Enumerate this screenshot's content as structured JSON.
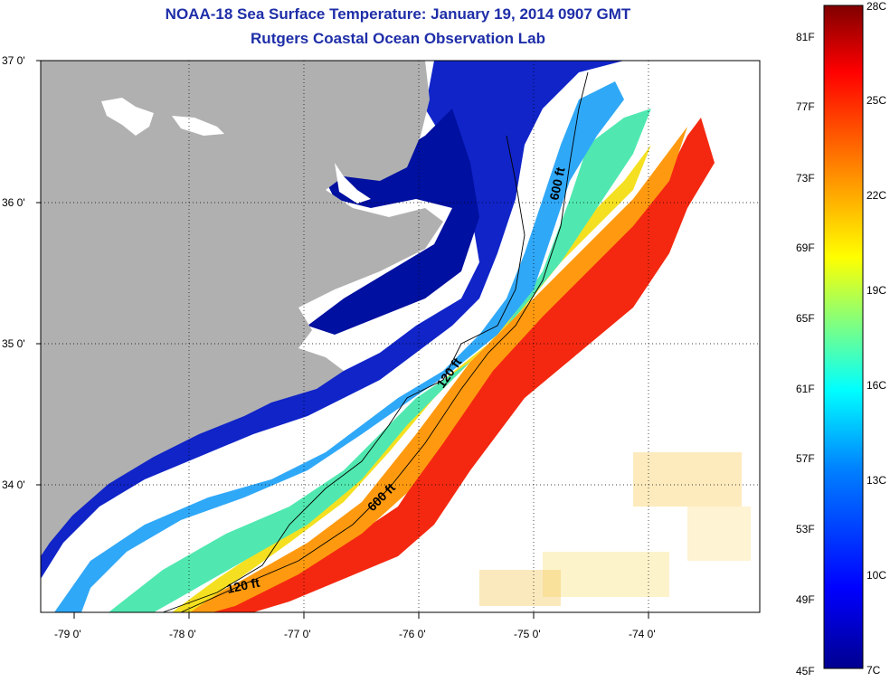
{
  "header": {
    "title": "NOAA-18 Sea Surface Temperature:  January 19, 2014 0907 GMT",
    "subtitle": "Rutgers Coastal Ocean Observation Lab"
  },
  "axes": {
    "lat_labels": [
      "37 0'",
      "36 0'",
      "35 0'",
      "34 0'"
    ],
    "lon_labels": [
      "-79 0'",
      "-78 0'",
      "-77 0'",
      "-76 0'",
      "-75 0'",
      "-74 0'"
    ]
  },
  "contours": {
    "labels": [
      "600 ft",
      "120 ft",
      "600 ft",
      "120 ft"
    ]
  },
  "colorbar": {
    "fahrenheit_labels": [
      "81F",
      "77F",
      "73F",
      "69F",
      "65F",
      "61F",
      "57F",
      "53F",
      "49F",
      "45F"
    ],
    "celsius_labels": [
      "28C",
      "25C",
      "22C",
      "19C",
      "16C",
      "13C",
      "10C",
      "7C"
    ],
    "colors": [
      "#00008f",
      "#0000ff",
      "#0080ff",
      "#00ffff",
      "#80ff80",
      "#ffff00",
      "#ff8000",
      "#ff0000",
      "#800000"
    ]
  },
  "colors": {
    "land": "#b0b0b0",
    "title": "#1e2ea8"
  }
}
